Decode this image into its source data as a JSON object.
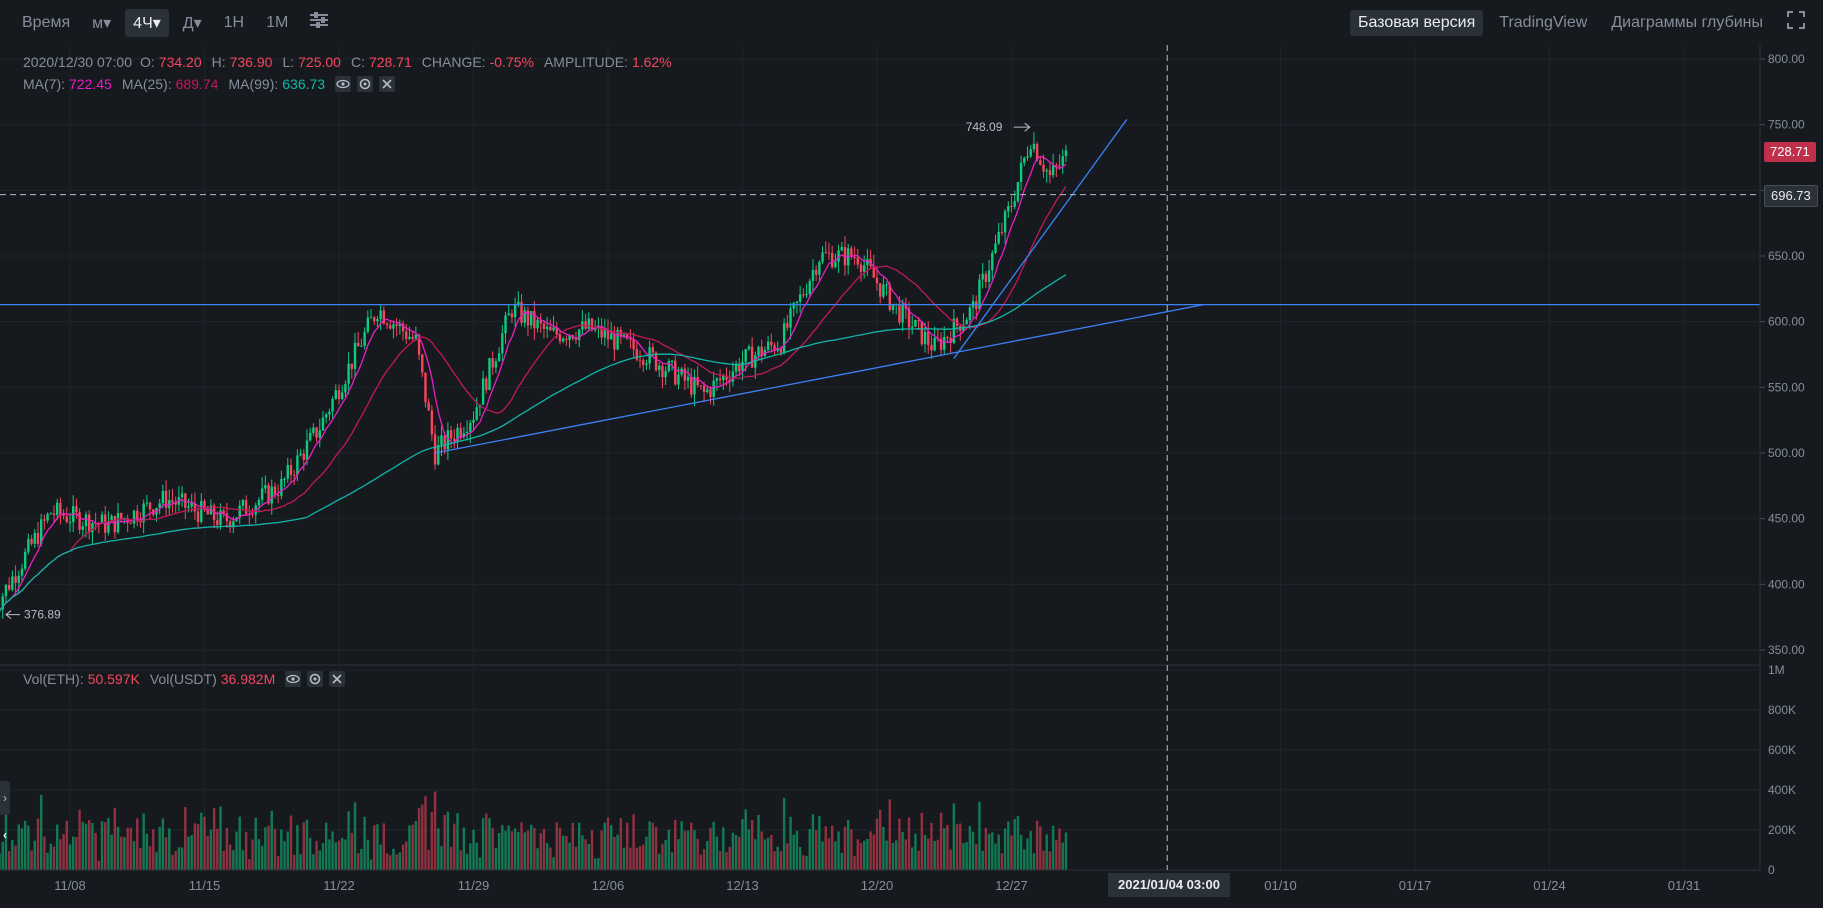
{
  "toolbar": {
    "items": [
      "Время",
      "м▾",
      "4Ч▾",
      "Д▾",
      "1Н",
      "1М"
    ],
    "active_index": 2,
    "right_items": [
      "Базовая версия",
      "TradingView",
      "Диаграммы глубины"
    ],
    "right_active_index": 0
  },
  "ohlc_legend": {
    "date": "2020/12/30 07:00",
    "open_label": "O:",
    "open": "734.20",
    "high_label": "H:",
    "high": "736.90",
    "low_label": "L:",
    "low": "725.00",
    "close_label": "C:",
    "close": "728.71",
    "change_label": "CHANGE:",
    "change": "-0.75%",
    "amplitude_label": "AMPLITUDE:",
    "amplitude": "1.62%"
  },
  "ma_legend": {
    "ma7_label": "MA(7):",
    "ma7": "722.45",
    "ma25_label": "MA(25):",
    "ma25": "689.74",
    "ma99_label": "MA(99):",
    "ma99": "636.73"
  },
  "vol_legend": {
    "eth_label": "Vol(ETH):",
    "eth": "50.597K",
    "usdt_label": "Vol(USDT)",
    "usdt": "36.982M"
  },
  "price_tags": {
    "last": "728.71",
    "crosshair": "696.73",
    "high_marker": "748.09",
    "low_marker": "376.89"
  },
  "crosshair_date": "2021/01/04 03:00",
  "colors": {
    "up": "#0ecb81",
    "down": "#f6465d",
    "ma7": "#e91ec7",
    "ma25": "#c2185b",
    "ma99": "#12b5a8",
    "trendline": "#3b82f6",
    "text": "#848e9c",
    "bg": "#161a1e"
  },
  "chart_data": {
    "type": "candlestick",
    "timeframe": "4H",
    "x_tick_labels": [
      "11/08",
      "11/15",
      "11/22",
      "11/29",
      "12/06",
      "12/13",
      "12/20",
      "12/27",
      "01/10",
      "01/17",
      "01/24",
      "01/31"
    ],
    "price_axis": {
      "ticks": [
        "800.00",
        "750.00",
        "700.00",
        "650.00",
        "600.00",
        "550.00",
        "500.00",
        "450.00",
        "400.00",
        "350.00"
      ],
      "ylim": [
        350,
        800
      ]
    },
    "volume_axis": {
      "ticks": [
        "1M",
        "800K",
        "600K",
        "400K",
        "200K",
        "0"
      ],
      "ylim": [
        0,
        1000000
      ]
    },
    "close_path_keypoints": [
      {
        "date": "11/04",
        "price": 380
      },
      {
        "date": "11/07",
        "price": 455
      },
      {
        "date": "11/10",
        "price": 445
      },
      {
        "date": "11/13",
        "price": 465
      },
      {
        "date": "11/16",
        "price": 448
      },
      {
        "date": "11/19",
        "price": 475
      },
      {
        "date": "11/21",
        "price": 520
      },
      {
        "date": "11/24",
        "price": 610
      },
      {
        "date": "11/26",
        "price": 585
      },
      {
        "date": "11/27",
        "price": 500
      },
      {
        "date": "11/29",
        "price": 530
      },
      {
        "date": "12/01",
        "price": 610
      },
      {
        "date": "12/03",
        "price": 590
      },
      {
        "date": "12/05",
        "price": 595
      },
      {
        "date": "12/08",
        "price": 575
      },
      {
        "date": "12/11",
        "price": 545
      },
      {
        "date": "12/13",
        "price": 570
      },
      {
        "date": "12/15",
        "price": 585
      },
      {
        "date": "12/17",
        "price": 650
      },
      {
        "date": "12/19",
        "price": 650
      },
      {
        "date": "12/21",
        "price": 610
      },
      {
        "date": "12/23",
        "price": 580
      },
      {
        "date": "12/25",
        "price": 610
      },
      {
        "date": "12/27",
        "price": 690
      },
      {
        "date": "12/28",
        "price": 740
      },
      {
        "date": "12/29",
        "price": 710
      },
      {
        "date": "12/30",
        "price": 728.71
      }
    ],
    "moving_averages": [
      {
        "name": "MA(7)",
        "last": 722.45
      },
      {
        "name": "MA(25)",
        "last": 689.74
      },
      {
        "name": "MA(99)",
        "last": 636.73
      }
    ],
    "horizontal_line": 613,
    "crosshair": {
      "price": 696.73,
      "date": "2021/01/04 03:00"
    },
    "annotations": [
      {
        "text": "748.09",
        "price": 748.09,
        "date": "12/28"
      },
      {
        "text": "376.89",
        "price": 376.89,
        "date": "11/04"
      }
    ]
  }
}
